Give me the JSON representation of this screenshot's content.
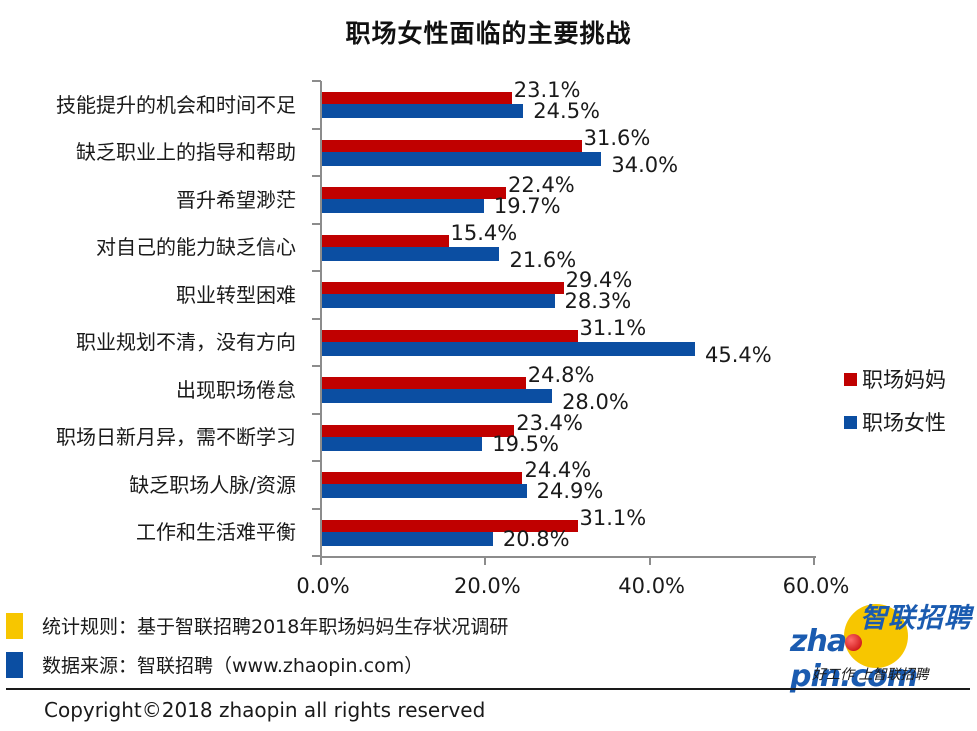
{
  "chart_data": {
    "type": "bar",
    "orientation": "horizontal",
    "title": "职场女性面临的主要挑战",
    "xlabel": "",
    "ylabel": "",
    "xlim": [
      0,
      60
    ],
    "x_ticks": [
      "0.0%",
      "20.0%",
      "40.0%",
      "60.0%"
    ],
    "grid": false,
    "legend_position": "right",
    "categories": [
      "技能提升的机会和时间不足",
      "缺乏职业上的指导和帮助",
      "晋升希望渺茫",
      "对自己的能力缺乏信心",
      "职业转型困难",
      "职业规划不清，没有方向",
      "出现职场倦怠",
      "职场日新月异，需不断学习",
      "缺乏职场人脉/资源",
      "工作和生活难平衡"
    ],
    "series": [
      {
        "name": "职场妈妈",
        "color": "#C00000",
        "values": [
          23.1,
          31.6,
          22.4,
          15.4,
          29.4,
          31.1,
          24.8,
          23.4,
          24.4,
          31.1
        ],
        "labels": [
          "23.1%",
          "31.6%",
          "22.4%",
          "15.4%",
          "29.4%",
          "31.1%",
          "24.8%",
          "23.4%",
          "24.4%",
          "31.1%"
        ]
      },
      {
        "name": "职场女性",
        "color": "#0B4EA2",
        "values": [
          24.5,
          34.0,
          19.7,
          21.6,
          28.3,
          45.4,
          28.0,
          19.5,
          24.9,
          20.8
        ],
        "labels": [
          "24.5%",
          "34.0%",
          "19.7%",
          "21.6%",
          "28.3%",
          "45.4%",
          "28.0%",
          "19.5%",
          "24.9%",
          "20.8%"
        ]
      }
    ]
  },
  "legend": {
    "items": [
      {
        "label": "职场妈妈",
        "color": "#C00000"
      },
      {
        "label": "职场女性",
        "color": "#0B4EA2"
      }
    ]
  },
  "footnotes": [
    {
      "text": "统计规则：基于智联招聘2018年职场妈妈生存状况调研",
      "color": "#F7C600"
    },
    {
      "text": "数据来源：智联招聘（www.zhaopin.com）",
      "color": "#0B4EA2"
    }
  ],
  "copyright": "Copyright©2018 zhaopin all rights reserved",
  "logo": {
    "cn": "智联招聘",
    "en_left": "zha",
    "en_right": "pin.com",
    "slogan": "好工作  上智联招聘"
  }
}
